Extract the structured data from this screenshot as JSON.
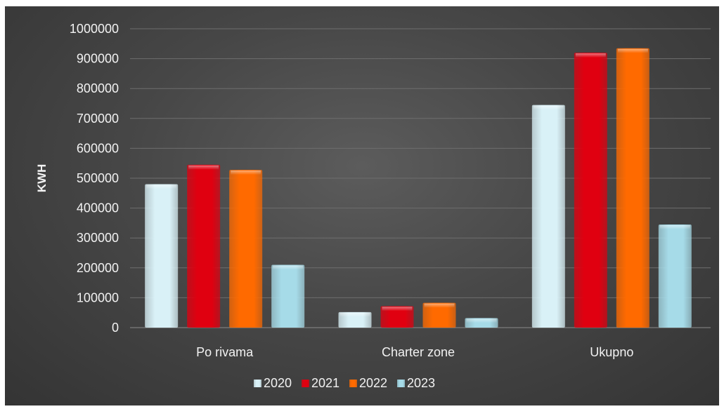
{
  "chart_data": {
    "type": "bar",
    "ylabel": "KWH",
    "xlabel": "",
    "title": "",
    "categories": [
      "Po rivama",
      "Charter zone",
      "Ukupno"
    ],
    "ylim": [
      0,
      1000000
    ],
    "yticks": [
      0,
      100000,
      200000,
      300000,
      400000,
      500000,
      600000,
      700000,
      800000,
      900000,
      1000000
    ],
    "grid": true,
    "legend_position": "bottom",
    "series": [
      {
        "name": "2020",
        "color": "#d9f1f7",
        "values": [
          480000,
          52000,
          745000
        ]
      },
      {
        "name": "2021",
        "color": "#e00010",
        "values": [
          545000,
          72000,
          920000
        ]
      },
      {
        "name": "2022",
        "color": "#ff6a00",
        "values": [
          528000,
          83000,
          935000
        ]
      },
      {
        "name": "2023",
        "color": "#a6dbe8",
        "values": [
          210000,
          32000,
          345000
        ]
      }
    ]
  }
}
